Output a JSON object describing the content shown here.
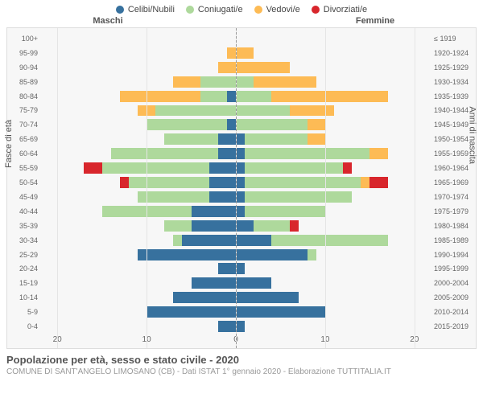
{
  "chart": {
    "type": "population-pyramid",
    "background_color": "#f7f7f7",
    "border_color": "#dddddd",
    "grid_color": "#e5e5e5",
    "center_line_color": "#999999",
    "legend": [
      {
        "label": "Celibi/Nubili",
        "color": "#37719e"
      },
      {
        "label": "Coniugati/e",
        "color": "#aed99c"
      },
      {
        "label": "Vedovi/e",
        "color": "#fdbb55"
      },
      {
        "label": "Divorziati/e",
        "color": "#d8262c"
      }
    ],
    "headers": {
      "left": "Maschi",
      "right": "Femmine"
    },
    "axis_left_title": "Fasce di età",
    "axis_right_title": "Anni di nascita",
    "x_ticks": [
      20,
      10,
      0,
      10,
      20
    ],
    "x_max": 22,
    "age_labels": [
      "100+",
      "95-99",
      "90-94",
      "85-89",
      "80-84",
      "75-79",
      "70-74",
      "65-69",
      "60-64",
      "55-59",
      "50-54",
      "45-49",
      "40-44",
      "35-39",
      "30-34",
      "25-29",
      "20-24",
      "15-19",
      "10-14",
      "5-9",
      "0-4"
    ],
    "birth_labels": [
      "≤ 1919",
      "1920-1924",
      "1925-1929",
      "1930-1934",
      "1935-1939",
      "1940-1944",
      "1945-1949",
      "1950-1954",
      "1955-1959",
      "1960-1964",
      "1965-1969",
      "1970-1974",
      "1975-1979",
      "1980-1984",
      "1985-1989",
      "1990-1994",
      "1995-1999",
      "2000-2004",
      "2005-2009",
      "2010-2014",
      "2015-2019"
    ],
    "rows": [
      {
        "m": {
          "cel": 0,
          "con": 0,
          "ved": 0,
          "div": 0
        },
        "f": {
          "cel": 0,
          "con": 0,
          "ved": 0,
          "div": 0
        }
      },
      {
        "m": {
          "cel": 0,
          "con": 0,
          "ved": 1,
          "div": 0
        },
        "f": {
          "cel": 0,
          "con": 0,
          "ved": 2,
          "div": 0
        }
      },
      {
        "m": {
          "cel": 0,
          "con": 0,
          "ved": 2,
          "div": 0
        },
        "f": {
          "cel": 0,
          "con": 0,
          "ved": 6,
          "div": 0
        }
      },
      {
        "m": {
          "cel": 0,
          "con": 4,
          "ved": 3,
          "div": 0
        },
        "f": {
          "cel": 0,
          "con": 2,
          "ved": 7,
          "div": 0
        }
      },
      {
        "m": {
          "cel": 1,
          "con": 3,
          "ved": 9,
          "div": 0
        },
        "f": {
          "cel": 0,
          "con": 4,
          "ved": 13,
          "div": 0
        }
      },
      {
        "m": {
          "cel": 0,
          "con": 9,
          "ved": 2,
          "div": 0
        },
        "f": {
          "cel": 0,
          "con": 6,
          "ved": 5,
          "div": 0
        }
      },
      {
        "m": {
          "cel": 1,
          "con": 9,
          "ved": 0,
          "div": 0
        },
        "f": {
          "cel": 0,
          "con": 8,
          "ved": 2,
          "div": 0
        }
      },
      {
        "m": {
          "cel": 2,
          "con": 6,
          "ved": 0,
          "div": 0
        },
        "f": {
          "cel": 1,
          "con": 7,
          "ved": 2,
          "div": 0
        }
      },
      {
        "m": {
          "cel": 2,
          "con": 12,
          "ved": 0,
          "div": 0
        },
        "f": {
          "cel": 1,
          "con": 14,
          "ved": 2,
          "div": 0
        }
      },
      {
        "m": {
          "cel": 3,
          "con": 12,
          "ved": 0,
          "div": 2
        },
        "f": {
          "cel": 1,
          "con": 11,
          "ved": 0,
          "div": 1
        }
      },
      {
        "m": {
          "cel": 3,
          "con": 9,
          "ved": 0,
          "div": 1
        },
        "f": {
          "cel": 1,
          "con": 13,
          "ved": 1,
          "div": 2
        }
      },
      {
        "m": {
          "cel": 3,
          "con": 8,
          "ved": 0,
          "div": 0
        },
        "f": {
          "cel": 1,
          "con": 12,
          "ved": 0,
          "div": 0
        }
      },
      {
        "m": {
          "cel": 5,
          "con": 10,
          "ved": 0,
          "div": 0
        },
        "f": {
          "cel": 1,
          "con": 9,
          "ved": 0,
          "div": 0
        }
      },
      {
        "m": {
          "cel": 5,
          "con": 3,
          "ved": 0,
          "div": 0
        },
        "f": {
          "cel": 2,
          "con": 4,
          "ved": 0,
          "div": 1
        }
      },
      {
        "m": {
          "cel": 6,
          "con": 1,
          "ved": 0,
          "div": 0
        },
        "f": {
          "cel": 4,
          "con": 13,
          "ved": 0,
          "div": 0
        }
      },
      {
        "m": {
          "cel": 11,
          "con": 0,
          "ved": 0,
          "div": 0
        },
        "f": {
          "cel": 8,
          "con": 1,
          "ved": 0,
          "div": 0
        }
      },
      {
        "m": {
          "cel": 2,
          "con": 0,
          "ved": 0,
          "div": 0
        },
        "f": {
          "cel": 1,
          "con": 0,
          "ved": 0,
          "div": 0
        }
      },
      {
        "m": {
          "cel": 5,
          "con": 0,
          "ved": 0,
          "div": 0
        },
        "f": {
          "cel": 4,
          "con": 0,
          "ved": 0,
          "div": 0
        }
      },
      {
        "m": {
          "cel": 7,
          "con": 0,
          "ved": 0,
          "div": 0
        },
        "f": {
          "cel": 7,
          "con": 0,
          "ved": 0,
          "div": 0
        }
      },
      {
        "m": {
          "cel": 10,
          "con": 0,
          "ved": 0,
          "div": 0
        },
        "f": {
          "cel": 10,
          "con": 0,
          "ved": 0,
          "div": 0
        }
      },
      {
        "m": {
          "cel": 2,
          "con": 0,
          "ved": 0,
          "div": 0
        },
        "f": {
          "cel": 1,
          "con": 0,
          "ved": 0,
          "div": 0
        }
      }
    ],
    "title": "Popolazione per età, sesso e stato civile - 2020",
    "subtitle": "COMUNE DI SANT'ANGELO LIMOSANO (CB) - Dati ISTAT 1° gennaio 2020 - Elaborazione TUTTITALIA.IT"
  }
}
